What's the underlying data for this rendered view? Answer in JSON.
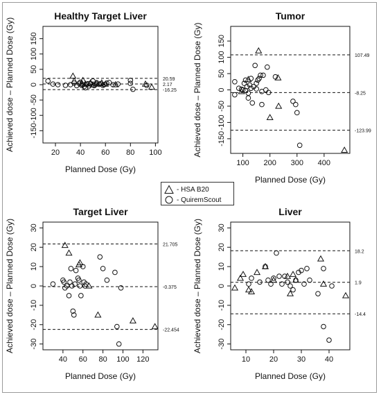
{
  "legend": {
    "items": [
      {
        "marker": "triangle",
        "label": "- HSA B20"
      },
      {
        "marker": "circle",
        "label": "- QuiremScout"
      }
    ]
  },
  "chart_data": [
    {
      "type": "scatter",
      "title": "Healthy Target Liver",
      "xlabel": "Planned Dose (Gy)",
      "ylabel": "Achieved dose – Planned Dose (Gy)",
      "xlim": [
        10,
        102
      ],
      "ylim": [
        -190,
        190
      ],
      "xticks": [
        20,
        40,
        60,
        80,
        100
      ],
      "yticks": [
        -150,
        -100,
        -50,
        0,
        50,
        100,
        150
      ],
      "hlines": [
        {
          "y": 20.59,
          "label": "20.59"
        },
        {
          "y": 2.17,
          "label": "2.17"
        },
        {
          "y": -16.25,
          "label": "-16.25"
        }
      ],
      "series": [
        {
          "marker": "triangle",
          "points": [
            [
              34,
              28
            ],
            [
              35,
              12
            ],
            [
              41,
              3
            ],
            [
              42,
              14
            ],
            [
              44,
              2
            ],
            [
              48,
              6
            ],
            [
              50,
              0
            ],
            [
              53,
              4
            ],
            [
              57,
              6
            ],
            [
              60,
              2
            ],
            [
              68,
              0
            ],
            [
              92,
              2
            ],
            [
              97,
              -8
            ]
          ]
        },
        {
          "marker": "circle",
          "points": [
            [
              14,
              12
            ],
            [
              18,
              2
            ],
            [
              22,
              0
            ],
            [
              28,
              -2
            ],
            [
              32,
              0
            ],
            [
              35,
              5
            ],
            [
              37,
              -3
            ],
            [
              39,
              4
            ],
            [
              40,
              8
            ],
            [
              41,
              -2
            ],
            [
              42,
              0
            ],
            [
              43,
              -6
            ],
            [
              44,
              -10
            ],
            [
              45,
              1
            ],
            [
              46,
              3
            ],
            [
              47,
              -4
            ],
            [
              48,
              3
            ],
            [
              50,
              12
            ],
            [
              51,
              -3
            ],
            [
              52,
              0
            ],
            [
              53,
              6
            ],
            [
              55,
              1
            ],
            [
              56,
              3
            ],
            [
              58,
              -2
            ],
            [
              59,
              0
            ],
            [
              61,
              5
            ],
            [
              63,
              7
            ],
            [
              66,
              0
            ],
            [
              70,
              2
            ],
            [
              80,
              14
            ],
            [
              80,
              4
            ],
            [
              82,
              -15
            ],
            [
              93,
              -2
            ]
          ]
        }
      ]
    },
    {
      "type": "scatter",
      "title": "Tumor",
      "xlabel": "Planned Dose (Gy)",
      "ylabel": "Achieved dose – Planned Dose (Gy)",
      "xlim": [
        55,
        495
      ],
      "ylim": [
        -195,
        195
      ],
      "xticks": [
        100,
        200,
        300,
        400
      ],
      "yticks": [
        -150,
        -100,
        -50,
        0,
        50,
        100,
        150
      ],
      "hlines": [
        {
          "y": 107.49,
          "label": "107.49"
        },
        {
          "y": -8.25,
          "label": "-8.25"
        },
        {
          "y": -123.99,
          "label": "-123.99"
        }
      ],
      "series": [
        {
          "marker": "triangle",
          "points": [
            [
              95,
              -5
            ],
            [
              120,
              32
            ],
            [
              158,
              120
            ],
            [
              230,
              37
            ],
            [
              232,
              -50
            ],
            [
              200,
              -85
            ],
            [
              475,
              -185
            ]
          ]
        },
        {
          "marker": "circle",
          "points": [
            [
              70,
              25
            ],
            [
              70,
              -15
            ],
            [
              85,
              5
            ],
            [
              95,
              2
            ],
            [
              100,
              0
            ],
            [
              105,
              20
            ],
            [
              110,
              -2
            ],
            [
              110,
              30
            ],
            [
              115,
              10
            ],
            [
              120,
              -10
            ],
            [
              120,
              -25
            ],
            [
              125,
              15
            ],
            [
              130,
              5
            ],
            [
              130,
              35
            ],
            [
              135,
              -40
            ],
            [
              140,
              10
            ],
            [
              145,
              75
            ],
            [
              150,
              20
            ],
            [
              150,
              3
            ],
            [
              155,
              30
            ],
            [
              160,
              35
            ],
            [
              165,
              45
            ],
            [
              170,
              -45
            ],
            [
              170,
              -5
            ],
            [
              175,
              45
            ],
            [
              185,
              0
            ],
            [
              190,
              70
            ],
            [
              195,
              -8
            ],
            [
              220,
              40
            ],
            [
              285,
              -35
            ],
            [
              295,
              -45
            ],
            [
              300,
              -70
            ],
            [
              310,
              -170
            ]
          ]
        }
      ]
    },
    {
      "type": "scatter",
      "title": "Target Liver",
      "xlabel": "Planned Dose (Gy)",
      "ylabel": "Achieved dose – Planned Dose (Gy)",
      "xlim": [
        20,
        135
      ],
      "ylim": [
        -33,
        33
      ],
      "xticks": [
        40,
        60,
        80,
        100,
        120
      ],
      "yticks": [
        -30,
        -20,
        -10,
        0,
        10,
        20,
        30
      ],
      "hlines": [
        {
          "y": 21.705,
          "label": "21.705"
        },
        {
          "y": -0.375,
          "label": "-0.375"
        },
        {
          "y": -22.454,
          "label": "-22.454"
        }
      ],
      "series": [
        {
          "marker": "triangle",
          "points": [
            [
              42,
              21
            ],
            [
              46,
              17
            ],
            [
              56,
              11
            ],
            [
              57,
              12
            ],
            [
              66,
              0
            ],
            [
              75,
              -15
            ],
            [
              110,
              -18
            ],
            [
              132,
              -21
            ]
          ]
        },
        {
          "marker": "circle",
          "points": [
            [
              30,
              1
            ],
            [
              40,
              3
            ],
            [
              41,
              2
            ],
            [
              42,
              -1
            ],
            [
              44,
              0
            ],
            [
              46,
              -5
            ],
            [
              47,
              2
            ],
            [
              48,
              9
            ],
            [
              49,
              0
            ],
            [
              50,
              -13
            ],
            [
              51,
              -15
            ],
            [
              52,
              1
            ],
            [
              53,
              8
            ],
            [
              55,
              4
            ],
            [
              56,
              3
            ],
            [
              57,
              0
            ],
            [
              58,
              -5
            ],
            [
              60,
              10
            ],
            [
              61,
              2
            ],
            [
              62,
              0
            ],
            [
              63,
              1
            ],
            [
              77,
              15
            ],
            [
              80,
              9
            ],
            [
              84,
              3
            ],
            [
              92,
              7
            ],
            [
              94,
              -21
            ],
            [
              96,
              -30
            ],
            [
              98,
              -1
            ]
          ]
        }
      ]
    },
    {
      "type": "scatter",
      "title": "Liver",
      "xlabel": "Planned Dose (Gy)",
      "ylabel": "Achieved dose – Planned Dose (Gy)",
      "xlim": [
        4.5,
        47.5
      ],
      "ylim": [
        -33,
        33
      ],
      "xticks": [
        10,
        20,
        30,
        40
      ],
      "yticks": [
        -30,
        -20,
        -10,
        0,
        10,
        20,
        30
      ],
      "hlines": [
        {
          "y": 18.2,
          "label": "18.2"
        },
        {
          "y": 1.9,
          "label": "1.9"
        },
        {
          "y": -14.4,
          "label": "-14.4"
        }
      ],
      "series": [
        {
          "marker": "triangle",
          "points": [
            [
              6,
              -1
            ],
            [
              8,
              4
            ],
            [
              9,
              6
            ],
            [
              11,
              -2
            ],
            [
              12,
              -3
            ],
            [
              14,
              7
            ],
            [
              17,
              10
            ],
            [
              20,
              3
            ],
            [
              25,
              5
            ],
            [
              26,
              -4
            ],
            [
              27,
              6
            ],
            [
              28,
              3
            ],
            [
              37,
              14
            ],
            [
              38,
              1
            ],
            [
              46,
              -5
            ]
          ]
        },
        {
          "marker": "circle",
          "points": [
            [
              11,
              1
            ],
            [
              12,
              4
            ],
            [
              15,
              2
            ],
            [
              17,
              10
            ],
            [
              18,
              3
            ],
            [
              19,
              1
            ],
            [
              20,
              4
            ],
            [
              21,
              17
            ],
            [
              22,
              5
            ],
            [
              23,
              1
            ],
            [
              24,
              5
            ],
            [
              25,
              2
            ],
            [
              26,
              0
            ],
            [
              27,
              -2
            ],
            [
              28,
              3
            ],
            [
              29,
              7
            ],
            [
              30,
              8
            ],
            [
              31,
              1
            ],
            [
              32,
              9
            ],
            [
              33,
              3
            ],
            [
              36,
              -4
            ],
            [
              38,
              9
            ],
            [
              38,
              -21
            ],
            [
              40,
              -28
            ],
            [
              41,
              0
            ]
          ]
        }
      ]
    }
  ]
}
